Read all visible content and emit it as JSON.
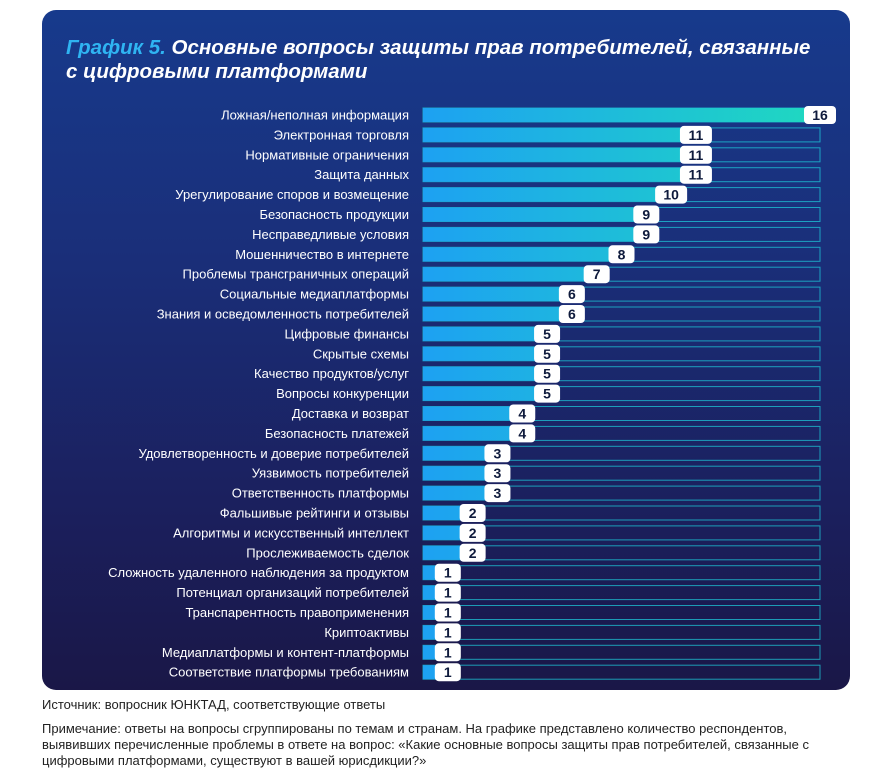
{
  "title_lead": "График 5.",
  "title_rest": " Основные вопросы защиты прав потребителей, связанные с цифровыми платформами",
  "source": "Источник: вопросник ЮНКТАД, соответствующие ответы",
  "note": "Примечание: ответы на вопросы сгруппированы по темам и странам. На графике представлено количество респондентов, выявивших перечисленные проблемы в ответе на вопрос: «Какие основные вопросы защиты прав потребителей, связанные с цифровыми платформами, существуют в вашей юрисдикции?»",
  "colors": {
    "bar_start": "#1da1f2",
    "bar_end": "#1fd9c0",
    "track": "#1ec8d8",
    "label": "#ffffff",
    "value_bg": "#ffffff",
    "value_text": "#0e1a3c"
  },
  "chart_data": {
    "type": "bar",
    "orientation": "horizontal",
    "title": "Основные вопросы защиты прав потребителей, связанные с цифровыми платформами",
    "xlim": [
      0,
      16
    ],
    "categories": [
      "Ложная/неполная информация",
      "Электронная торговля",
      "Нормативные ограничения",
      "Защита данных",
      "Урегулирование споров и возмещение",
      "Безопасность продукции",
      "Несправедливые условия",
      "Мошенничество в интернете",
      "Проблемы трансграничных операций",
      "Социальные медиаплатформы",
      "Знания и осведомленность потребителей",
      "Цифровые финансы",
      "Скрытые схемы",
      "Качество продуктов/услуг",
      "Вопросы конкуренции",
      "Доставка и возврат",
      "Безопасность платежей",
      "Удовлетворенность и доверие потребителей",
      "Уязвимость потребителей",
      "Ответственность платформы",
      "Фальшивые рейтинги и отзывы",
      "Алгоритмы и искусственный интеллект",
      "Прослеживаемость сделок",
      "Сложность удаленного наблюдения за продуктом",
      "Потенциал организаций потребителей",
      "Транспарентность правоприменения",
      "Криптоактивы",
      "Медиаплатформы и контент-платформы",
      "Соответствие платформы требованиям"
    ],
    "values": [
      16,
      11,
      11,
      11,
      10,
      9,
      9,
      8,
      7,
      6,
      6,
      5,
      5,
      5,
      5,
      4,
      4,
      3,
      3,
      3,
      2,
      2,
      2,
      1,
      1,
      1,
      1,
      1,
      1
    ]
  }
}
